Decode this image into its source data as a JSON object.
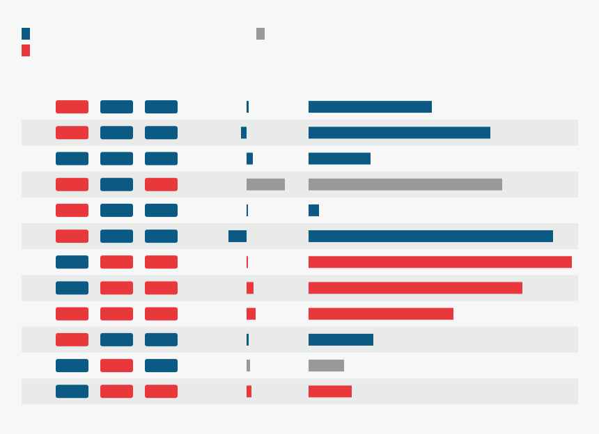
{
  "colors": {
    "blue": "#0b5a84",
    "red": "#e8383b",
    "gray": "#999999",
    "stripe": "#e9ebeb",
    "background": "#f7f7f7"
  },
  "legend": [
    {
      "color": "blue"
    },
    {
      "color": "red"
    },
    {
      "color": "gray"
    }
  ],
  "chart_data": {
    "type": "table",
    "columns": [
      {
        "kind": "indicators",
        "count": 3
      },
      {
        "kind": "diverging-bar",
        "range": [
          -26,
          55
        ]
      },
      {
        "kind": "bar",
        "range": [
          0,
          380
        ]
      }
    ],
    "rows": [
      {
        "indicators": [
          "red",
          "blue",
          "blue"
        ],
        "change": {
          "value": 3,
          "color": "blue"
        },
        "total": {
          "value": 177,
          "color": "blue"
        }
      },
      {
        "indicators": [
          "red",
          "blue",
          "blue"
        ],
        "change": {
          "value": -8,
          "color": "blue"
        },
        "total": {
          "value": 261,
          "color": "blue"
        }
      },
      {
        "indicators": [
          "blue",
          "blue",
          "blue"
        ],
        "change": {
          "value": 9,
          "color": "blue"
        },
        "total": {
          "value": 89,
          "color": "blue"
        }
      },
      {
        "indicators": [
          "red",
          "blue",
          "red"
        ],
        "change": {
          "value": 55,
          "color": "gray"
        },
        "total": {
          "value": 278,
          "color": "gray"
        }
      },
      {
        "indicators": [
          "red",
          "blue",
          "blue"
        ],
        "change": {
          "value": 2,
          "color": "blue"
        },
        "total": {
          "value": 15,
          "color": "blue"
        }
      },
      {
        "indicators": [
          "red",
          "blue",
          "blue"
        ],
        "change": {
          "value": -26,
          "color": "blue"
        },
        "total": {
          "value": 351,
          "color": "blue"
        }
      },
      {
        "indicators": [
          "blue",
          "red",
          "red"
        ],
        "change": {
          "value": 2,
          "color": "red"
        },
        "total": {
          "value": 378,
          "color": "red"
        }
      },
      {
        "indicators": [
          "blue",
          "red",
          "red"
        ],
        "change": {
          "value": 10,
          "color": "red"
        },
        "total": {
          "value": 307,
          "color": "red"
        }
      },
      {
        "indicators": [
          "red",
          "red",
          "red"
        ],
        "change": {
          "value": 13,
          "color": "red"
        },
        "total": {
          "value": 208,
          "color": "red"
        }
      },
      {
        "indicators": [
          "red",
          "blue",
          "blue"
        ],
        "change": {
          "value": 3,
          "color": "blue"
        },
        "total": {
          "value": 93,
          "color": "blue"
        }
      },
      {
        "indicators": [
          "blue",
          "red",
          "blue"
        ],
        "change": {
          "value": 5,
          "color": "gray"
        },
        "total": {
          "value": 51,
          "color": "gray"
        }
      },
      {
        "indicators": [
          "blue",
          "red",
          "red"
        ],
        "change": {
          "value": 7,
          "color": "red"
        },
        "total": {
          "value": 62,
          "color": "red"
        }
      }
    ]
  }
}
